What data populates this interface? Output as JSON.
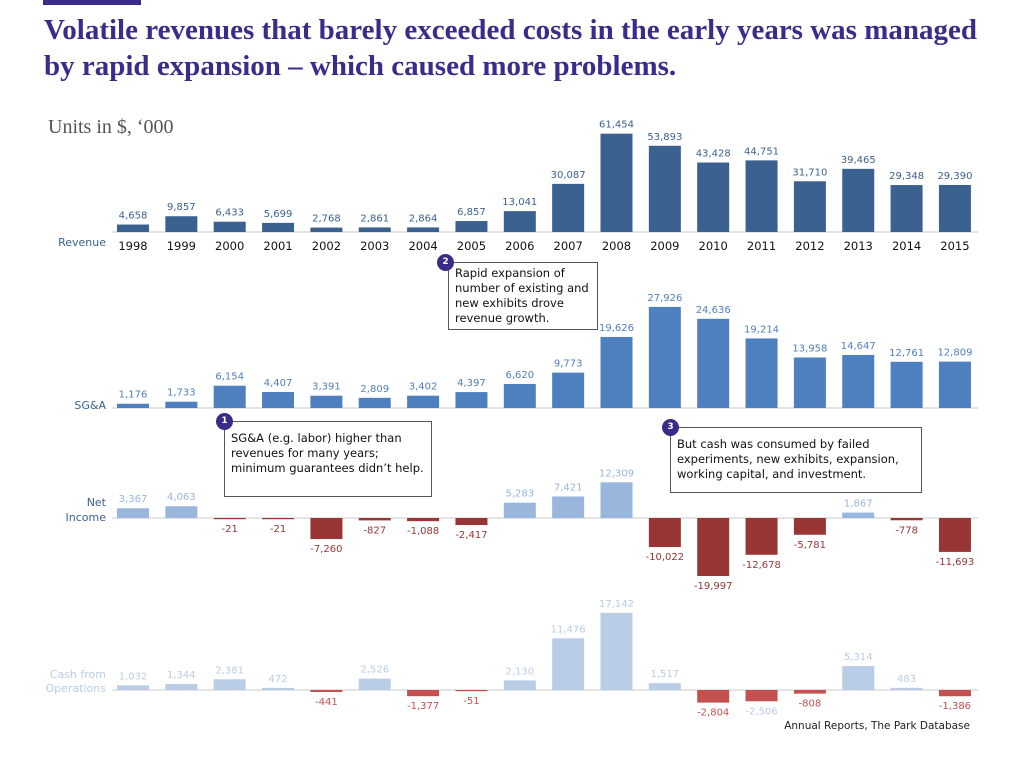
{
  "header": {
    "title": "Volatile revenues that barely exceeded costs in the early years was managed by rapid expansion – which caused more problems.",
    "units": "Units in $, ‘000"
  },
  "annotations": [
    {
      "number": "1",
      "text": "SG&A (e.g. labor) higher than revenues for many years; minimum guarantees didn’t help."
    },
    {
      "number": "2",
      "text": "Rapid expansion of number of existing and new exhibits drove revenue growth."
    },
    {
      "number": "3",
      "text": "But cash was consumed by failed experiments, new exhibits, expansion, working capital, and investment."
    }
  ],
  "source": "Annual Reports, The Park Database",
  "colors": {
    "title": "#3b2c8c",
    "revenue": "#3a6190",
    "sga": "#4e7fbf",
    "net_income_positive": "#99b6dd",
    "net_income_negative": "#983535",
    "cash_positive": "#b9cde6",
    "cash_negative": "#c55050"
  },
  "chart_data": {
    "type": "bar",
    "title": "Volatile revenues that barely exceeded costs in the early years was managed by rapid expansion – which caused more problems.",
    "subtitle": "Units in $, ‘000",
    "xlabel": "",
    "ylabel": "",
    "grid": false,
    "categories": [
      "1998",
      "1999",
      "2000",
      "2001",
      "2002",
      "2003",
      "2004",
      "2005",
      "2006",
      "2007",
      "2008",
      "2009",
      "2010",
      "2011",
      "2012",
      "2013",
      "2014",
      "2015"
    ],
    "series": [
      {
        "name": "Revenue",
        "values": [
          4658,
          9857,
          6433,
          5699,
          2768,
          2861,
          2864,
          6857,
          13041,
          30087,
          61454,
          53893,
          43428,
          44751,
          31710,
          39465,
          29348,
          29390
        ],
        "labels": [
          "4,658",
          "9,857",
          "6,433",
          "5,699",
          "2,768",
          "2,861",
          "2,864",
          "6,857",
          "13,041",
          "30,087",
          "61,454",
          "53,893",
          "43,428",
          "44,751",
          "31,710",
          "39,465",
          "29,348",
          "29,390"
        ]
      },
      {
        "name": "SG&A",
        "values": [
          1176,
          1733,
          6154,
          4407,
          3391,
          2809,
          3402,
          4397,
          6620,
          9773,
          19626,
          27926,
          24636,
          19214,
          13958,
          14647,
          12761,
          12809
        ],
        "labels": [
          "1,176",
          "1,733",
          "6,154",
          "4,407",
          "3,391",
          "2,809",
          "3,402",
          "4,397",
          "6,620",
          "9,773",
          "19,626",
          "27,926",
          "24,636",
          "19,214",
          "13,958",
          "14,647",
          "12,761",
          "12,809"
        ]
      },
      {
        "name": "Net Income",
        "values": [
          3367,
          4063,
          -21,
          -21,
          -7260,
          -827,
          -1088,
          -2417,
          5283,
          7421,
          12309,
          -10022,
          -19997,
          -12678,
          -5781,
          1867,
          -778,
          -11693
        ],
        "labels": [
          "3,367",
          "4,063",
          "-21",
          "-21",
          "-7,260",
          "-827",
          "-1,088",
          "-2,417",
          "5,283",
          "7,421",
          "12,309",
          "-10,022",
          "-19,997",
          "-12,678",
          "-5,781",
          "1,867",
          "-778",
          "-11,693"
        ]
      },
      {
        "name": "Cash from Operations",
        "values": [
          1032,
          1344,
          2381,
          472,
          -441,
          2526,
          -1377,
          -51,
          2130,
          11476,
          17142,
          1517,
          -2804,
          -2506,
          -808,
          5314,
          483,
          -1386
        ],
        "labels": [
          "1,032",
          "1,344",
          "2,381",
          "472",
          "-441",
          "2,526",
          "-1,377",
          "-51",
          "2,130",
          "11,476",
          "17,142",
          "1,517",
          "-2,804",
          "-2,506",
          "-808",
          "5,314",
          "483",
          "-1,386"
        ]
      }
    ],
    "row_labels": [
      [
        "Revenue"
      ],
      [
        "SG&A"
      ],
      [
        "Net",
        "Income"
      ],
      [
        "Cash from",
        "Operations"
      ]
    ]
  }
}
